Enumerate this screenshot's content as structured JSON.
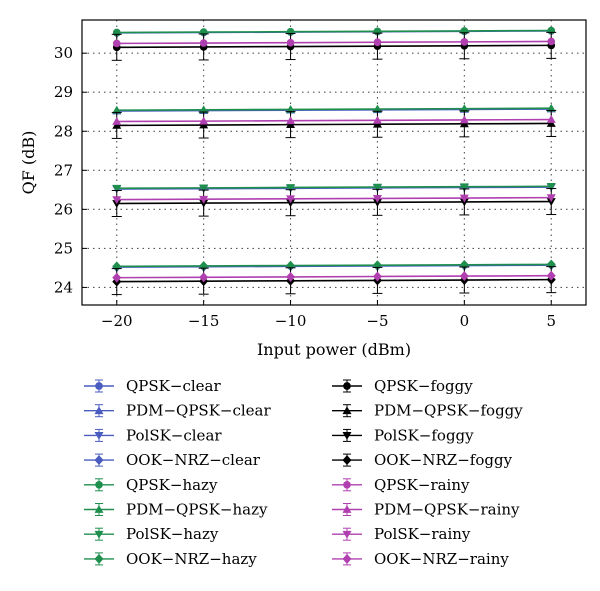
{
  "chart_data": {
    "type": "line",
    "xlabel": "Input power (dBm)",
    "ylabel": "QF (dB)",
    "x": [
      -20,
      -15,
      -10,
      -5,
      0,
      5
    ],
    "xlim": [
      -22,
      7
    ],
    "ylim": [
      23.55,
      30.85
    ],
    "xticks": [
      -20,
      -15,
      -10,
      -5,
      0,
      5
    ],
    "yticks": [
      24,
      25,
      26,
      27,
      28,
      29,
      30
    ],
    "xtick_labels": [
      "−20",
      "−15",
      "−10",
      "−5",
      "0",
      "5"
    ],
    "ytick_labels": [
      "24",
      "25",
      "26",
      "27",
      "28",
      "29",
      "30"
    ],
    "grid": true,
    "legend_position": "bottom",
    "series": [
      {
        "name": "QPSK−clear",
        "color": "#4a5cc0",
        "marker": "circle",
        "values": [
          30.52,
          30.53,
          30.54,
          30.55,
          30.56,
          30.57
        ]
      },
      {
        "name": "PDM−QPSK−clear",
        "color": "#4a5cc0",
        "marker": "triangle-up",
        "values": [
          28.52,
          28.53,
          28.54,
          28.55,
          28.56,
          28.57
        ]
      },
      {
        "name": "PolSK−clear",
        "color": "#4a5cc0",
        "marker": "triangle-down",
        "values": [
          26.52,
          26.53,
          26.54,
          26.55,
          26.56,
          26.57
        ]
      },
      {
        "name": "OOK−NRZ−clear",
        "color": "#4a5cc0",
        "marker": "diamond",
        "values": [
          24.52,
          24.53,
          24.54,
          24.55,
          24.56,
          24.57
        ]
      },
      {
        "name": "QPSK−hazy",
        "color": "#1f8f4e",
        "marker": "circle",
        "values": [
          30.53,
          30.54,
          30.55,
          30.56,
          30.57,
          30.58
        ]
      },
      {
        "name": "PDM−QPSK−hazy",
        "color": "#1f8f4e",
        "marker": "triangle-up",
        "values": [
          28.54,
          28.55,
          28.56,
          28.57,
          28.58,
          28.59
        ]
      },
      {
        "name": "PolSK−hazy",
        "color": "#1f8f4e",
        "marker": "triangle-down",
        "values": [
          26.54,
          26.55,
          26.56,
          26.57,
          26.58,
          26.59
        ]
      },
      {
        "name": "OOK−NRZ−hazy",
        "color": "#1f8f4e",
        "marker": "diamond",
        "values": [
          24.54,
          24.55,
          24.56,
          24.57,
          24.58,
          24.59
        ]
      },
      {
        "name": "QPSK−foggy",
        "color": "#000000",
        "marker": "circle",
        "values": [
          30.15,
          30.16,
          30.17,
          30.18,
          30.19,
          30.2
        ]
      },
      {
        "name": "PDM−QPSK−foggy",
        "color": "#000000",
        "marker": "triangle-up",
        "values": [
          28.15,
          28.16,
          28.17,
          28.18,
          28.19,
          28.2
        ]
      },
      {
        "name": "PolSK−foggy",
        "color": "#000000",
        "marker": "triangle-down",
        "values": [
          26.15,
          26.16,
          26.17,
          26.18,
          26.19,
          26.2
        ]
      },
      {
        "name": "OOK−NRZ−foggy",
        "color": "#000000",
        "marker": "diamond",
        "values": [
          24.15,
          24.16,
          24.17,
          24.18,
          24.19,
          24.2
        ]
      },
      {
        "name": "QPSK−rainy",
        "color": "#b040b0",
        "marker": "circle",
        "values": [
          30.25,
          30.26,
          30.27,
          30.28,
          30.29,
          30.3
        ]
      },
      {
        "name": "PDM−QPSK−rainy",
        "color": "#b040b0",
        "marker": "triangle-up",
        "values": [
          28.25,
          28.26,
          28.27,
          28.28,
          28.29,
          28.3
        ]
      },
      {
        "name": "PolSK−rainy",
        "color": "#b040b0",
        "marker": "triangle-down",
        "values": [
          26.25,
          26.26,
          26.27,
          26.28,
          26.29,
          26.3
        ]
      },
      {
        "name": "OOK−NRZ−rainy",
        "color": "#b040b0",
        "marker": "diamond",
        "values": [
          24.25,
          24.26,
          24.27,
          24.28,
          24.29,
          24.3
        ]
      }
    ]
  }
}
